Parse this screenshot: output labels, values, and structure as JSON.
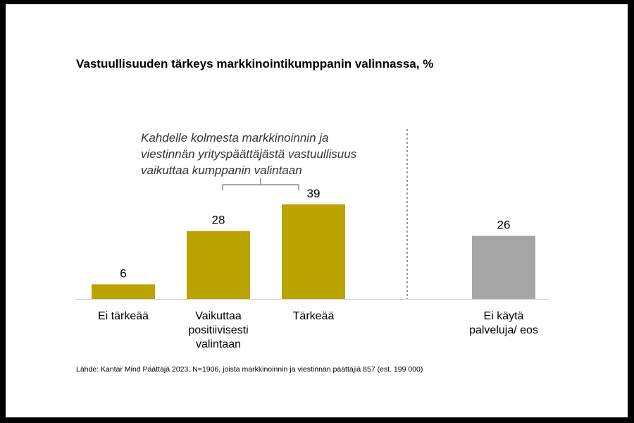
{
  "chart_data": {
    "type": "bar",
    "title": "Vastuullisuuden tärkeys markkinointikumppanin valinnassa, %",
    "categories": [
      [
        "Ei tärkeää"
      ],
      [
        "Vaikuttaa",
        "positiivisesti",
        "valintaan"
      ],
      [
        "Tärkeää"
      ],
      [
        "Ei käytä",
        "palveluja/ eos"
      ]
    ],
    "values": [
      6,
      28,
      39,
      26
    ],
    "colors": [
      "#BBA300",
      "#BBA300",
      "#BBA300",
      "#A6A6A6"
    ],
    "data_labels": [
      "6",
      "28",
      "39",
      "26"
    ],
    "ylim": [
      0,
      45
    ],
    "grid": false,
    "separator": "dashed vertical line before last category",
    "annotation": [
      "Kahdelle kolmesta markkinoinnin ja",
      "viestinnän yrityspäättäjästä vastuullisuus",
      "vaikuttaa kumppanin valintaan"
    ],
    "source": "Lähde: Kantar Mind Päättäjä 2023, N=1906, joista markkinoinnin ja viestinnän päättäjiä 857 (est. 199 000)"
  }
}
